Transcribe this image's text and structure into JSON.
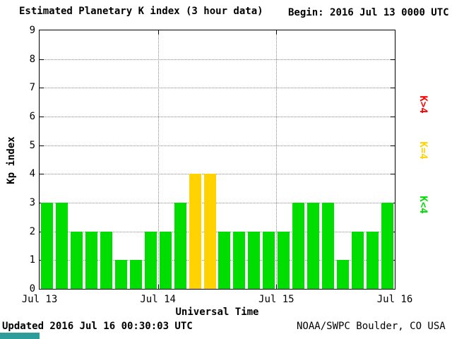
{
  "header": {
    "title": "Estimated Planetary K index (3 hour data)",
    "begin_label": "Begin:",
    "begin_value": "2016 Jul 13 0000 UTC"
  },
  "footer": {
    "updated": "Updated 2016 Jul 16 00:30:03 UTC",
    "source": "NOAA/SWPC Boulder, CO USA"
  },
  "chart_data": {
    "type": "bar",
    "title": "Estimated Planetary K index (3 hour data)",
    "xlabel": "Universal Time",
    "ylabel": "Kp index",
    "ylim": [
      0,
      9
    ],
    "y_ticks": [
      0,
      1,
      2,
      3,
      4,
      5,
      6,
      7,
      8,
      9
    ],
    "x_ticks": [
      "Jul 13",
      "Jul 14",
      "Jul 15",
      "Jul 16"
    ],
    "interval_hours": 3,
    "bars_per_day": 8,
    "values": [
      3,
      3,
      2,
      2,
      2,
      1,
      1,
      2,
      2,
      3,
      4,
      4,
      2,
      2,
      2,
      2,
      2,
      3,
      3,
      3,
      1,
      2,
      2,
      3
    ],
    "grid": true,
    "legend_position": "right",
    "colors": {
      "low": "#00dd00",
      "mid": "#ffd200",
      "high": "#ff0000"
    },
    "legend": [
      {
        "label": "K>4",
        "color": "#ff0000"
      },
      {
        "label": "K=4",
        "color": "#ffd200"
      },
      {
        "label": "K<4",
        "color": "#00dd00"
      }
    ]
  }
}
